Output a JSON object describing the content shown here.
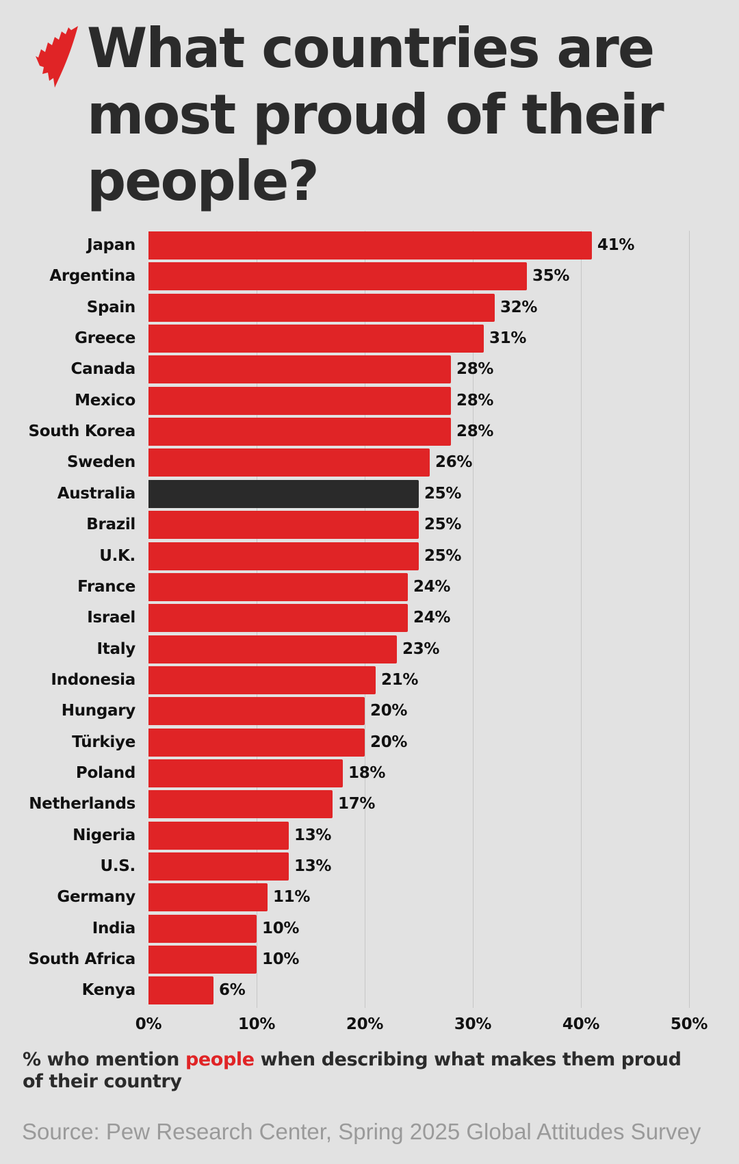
{
  "header": {
    "logo": "sbs-logo-icon",
    "title": "What countries are most proud of their people?"
  },
  "caption": {
    "prefix": "% who mention ",
    "highlight": "people",
    "suffix": " when describing what makes them proud of their country"
  },
  "source": "Source: Pew Research Center, Spring 2025 Global Attitudes Survey",
  "colors": {
    "background": "#e2e2e2",
    "bar": "#e02426",
    "highlight_bar": "#2a2a2a",
    "gridline": "#c6c6c6",
    "source_text": "#9a9a9a"
  },
  "chart_data": {
    "type": "bar",
    "orientation": "horizontal",
    "title": "What countries are most proud of their people?",
    "xlabel": "% who mention people when describing what makes them proud of their country",
    "ylabel": "",
    "xlim": [
      0,
      50
    ],
    "x_ticks": [
      "0%",
      "10%",
      "20%",
      "30%",
      "40%",
      "50%"
    ],
    "grid": true,
    "legend": null,
    "highlighted_category": "Australia",
    "categories": [
      "Japan",
      "Argentina",
      "Spain",
      "Greece",
      "Canada",
      "Mexico",
      "South Korea",
      "Sweden",
      "Australia",
      "Brazil",
      "U.K.",
      "France",
      "Israel",
      "Italy",
      "Indonesia",
      "Hungary",
      "Türkiye",
      "Poland",
      "Netherlands",
      "Nigeria",
      "U.S.",
      "Germany",
      "India",
      "South Africa",
      "Kenya"
    ],
    "values": [
      41,
      35,
      32,
      31,
      28,
      28,
      28,
      26,
      25,
      25,
      25,
      24,
      24,
      23,
      21,
      20,
      20,
      18,
      17,
      13,
      13,
      11,
      10,
      10,
      6
    ],
    "value_labels": [
      "41%",
      "35%",
      "32%",
      "31%",
      "28%",
      "28%",
      "28%",
      "26%",
      "25%",
      "25%",
      "25%",
      "24%",
      "24%",
      "23%",
      "21%",
      "20%",
      "20%",
      "18%",
      "17%",
      "13%",
      "13%",
      "11%",
      "10%",
      "10%",
      "6%"
    ],
    "annotations": [
      "Source: Pew Research Center, Spring 2025 Global Attitudes Survey"
    ]
  }
}
